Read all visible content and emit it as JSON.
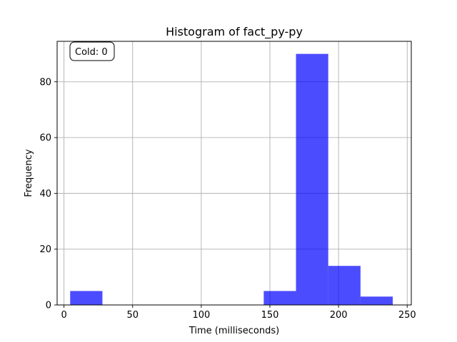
{
  "chart_data": {
    "type": "bar",
    "title": "Histogram of fact_py-py",
    "xlabel": "Time (milliseconds)",
    "ylabel": "Frequency",
    "xlim": [
      -5,
      253
    ],
    "ylim": [
      0,
      94.5
    ],
    "xticks": [
      0,
      50,
      100,
      150,
      200,
      250
    ],
    "yticks": [
      0,
      20,
      40,
      60,
      80
    ],
    "bins": [
      {
        "x0": 4.5,
        "x1": 28,
        "count": 5
      },
      {
        "x0": 28,
        "x1": 51.5,
        "count": 0
      },
      {
        "x0": 51.5,
        "x1": 75,
        "count": 0
      },
      {
        "x0": 75,
        "x1": 98.5,
        "count": 0
      },
      {
        "x0": 98.5,
        "x1": 122,
        "count": 0
      },
      {
        "x0": 122,
        "x1": 145.5,
        "count": 0
      },
      {
        "x0": 145.5,
        "x1": 169,
        "count": 5
      },
      {
        "x0": 169,
        "x1": 192.5,
        "count": 90
      },
      {
        "x0": 192.5,
        "x1": 216,
        "count": 14
      },
      {
        "x0": 216,
        "x1": 239.5,
        "count": 3
      }
    ],
    "bar_color": "#0000ff",
    "grid": true,
    "annotation": {
      "text": "Cold: 0",
      "placement": "top-left"
    }
  }
}
